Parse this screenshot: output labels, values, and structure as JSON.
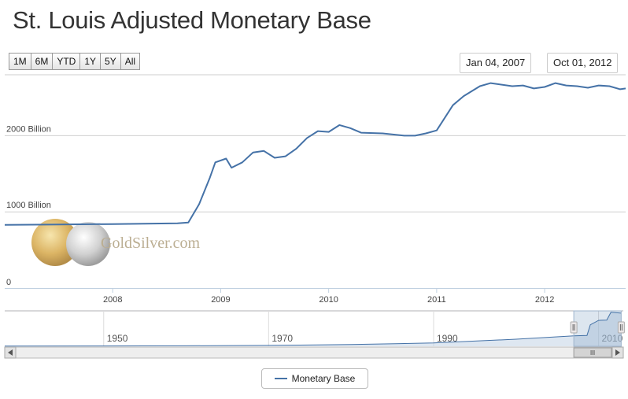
{
  "title": "St. Louis Adjusted Monetary Base",
  "zoom_buttons": [
    "1M",
    "6M",
    "YTD",
    "1Y",
    "5Y",
    "All"
  ],
  "range_from": "Jan 04, 2007",
  "range_to": "Oct 01, 2012",
  "watermark": "GoldSilver.com",
  "colors": {
    "series": "#4572a7",
    "navigator_fill": "#c3d3e5"
  },
  "chart_data": {
    "type": "line",
    "title": "St. Louis Adjusted Monetary Base",
    "xlabel": "",
    "ylabel": "",
    "ylim": [
      0,
      2800
    ],
    "xlim": [
      2007.0,
      2012.75
    ],
    "y_ticks": [
      {
        "value": 0,
        "label": "0"
      },
      {
        "value": 1000,
        "label": "1000 Billion"
      },
      {
        "value": 2000,
        "label": "2000 Billion"
      }
    ],
    "x_ticks": [
      {
        "value": 2008,
        "label": "2008"
      },
      {
        "value": 2009,
        "label": "2009"
      },
      {
        "value": 2010,
        "label": "2010"
      },
      {
        "value": 2011,
        "label": "2011"
      },
      {
        "value": 2012,
        "label": "2012"
      }
    ],
    "legend": "bottom-center",
    "series": [
      {
        "name": "Monetary Base",
        "x": [
          2007.0,
          2007.5,
          2008.0,
          2008.3,
          2008.6,
          2008.7,
          2008.8,
          2008.9,
          2008.95,
          2009.05,
          2009.1,
          2009.2,
          2009.3,
          2009.4,
          2009.5,
          2009.6,
          2009.7,
          2009.8,
          2009.9,
          2010.0,
          2010.1,
          2010.2,
          2010.3,
          2010.5,
          2010.7,
          2010.8,
          2010.9,
          2011.0,
          2011.15,
          2011.25,
          2011.4,
          2011.5,
          2011.7,
          2011.8,
          2011.9,
          2012.0,
          2012.1,
          2012.2,
          2012.3,
          2012.4,
          2012.5,
          2012.6,
          2012.7,
          2012.75
        ],
        "values": [
          830,
          835,
          840,
          845,
          850,
          860,
          1100,
          1450,
          1650,
          1700,
          1580,
          1650,
          1780,
          1800,
          1710,
          1730,
          1830,
          1970,
          2060,
          2050,
          2140,
          2100,
          2040,
          2030,
          2000,
          2000,
          2030,
          2070,
          2400,
          2520,
          2650,
          2690,
          2650,
          2660,
          2620,
          2640,
          2690,
          2660,
          2650,
          2630,
          2660,
          2650,
          2610,
          2620
        ]
      }
    ],
    "navigator": {
      "x_ticks": [
        {
          "value": 1950,
          "label": "1950"
        },
        {
          "value": 1970,
          "label": "1970"
        },
        {
          "value": 1990,
          "label": "1990"
        },
        {
          "value": 2010,
          "label": "2010"
        }
      ],
      "xlim": [
        1938,
        2013
      ],
      "ylim": [
        0,
        2800
      ],
      "x": [
        1938,
        1950,
        1960,
        1970,
        1980,
        1990,
        2000,
        2007,
        2008.6,
        2009,
        2010,
        2011,
        2011.5,
        2012.75
      ],
      "values": [
        10,
        25,
        40,
        70,
        140,
        260,
        560,
        830,
        860,
        1700,
        2050,
        2070,
        2690,
        2620
      ],
      "selected_range": [
        2007.0,
        2012.75
      ]
    }
  },
  "legend_label": "Monetary Base"
}
